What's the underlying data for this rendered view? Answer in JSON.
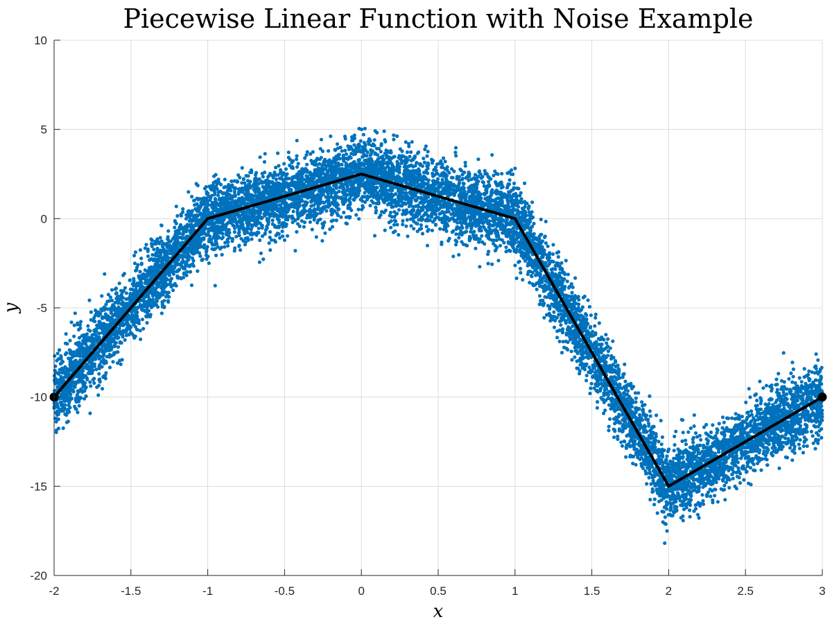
{
  "chart_data": {
    "type": "scatter",
    "title": "Piecewise Linear Function with Noise Example",
    "xlabel": "x",
    "ylabel": "y",
    "xlim": [
      -2,
      3
    ],
    "ylim": [
      -20,
      10
    ],
    "xticks": [
      -2,
      -1.5,
      -1,
      -0.5,
      0,
      0.5,
      1,
      1.5,
      2,
      2.5,
      3
    ],
    "yticks": [
      -20,
      -15,
      -10,
      -5,
      0,
      5,
      10
    ],
    "xtick_labels": [
      "-2",
      "-1.5",
      "-1",
      "-0.5",
      "0",
      "0.5",
      "1",
      "1.5",
      "2",
      "2.5",
      "3"
    ],
    "ytick_labels": [
      "-20",
      "-15",
      "-10",
      "-5",
      "0",
      "5",
      "10"
    ],
    "grid": true,
    "legend": "none",
    "series": [
      {
        "type": "scatter",
        "color": "#0072BD",
        "noise_std": 1.0,
        "x_range": [
          -2,
          3
        ],
        "point_count": 10000
      },
      {
        "type": "line",
        "color": "#000000",
        "x": [
          -2,
          -1,
          0,
          1,
          2,
          3
        ],
        "y": [
          -10,
          0,
          2.5,
          0,
          -15,
          -10
        ]
      },
      {
        "type": "endpoints",
        "color": "#000000",
        "x": [
          -2,
          3
        ],
        "y": [
          -10,
          -10
        ]
      }
    ]
  }
}
